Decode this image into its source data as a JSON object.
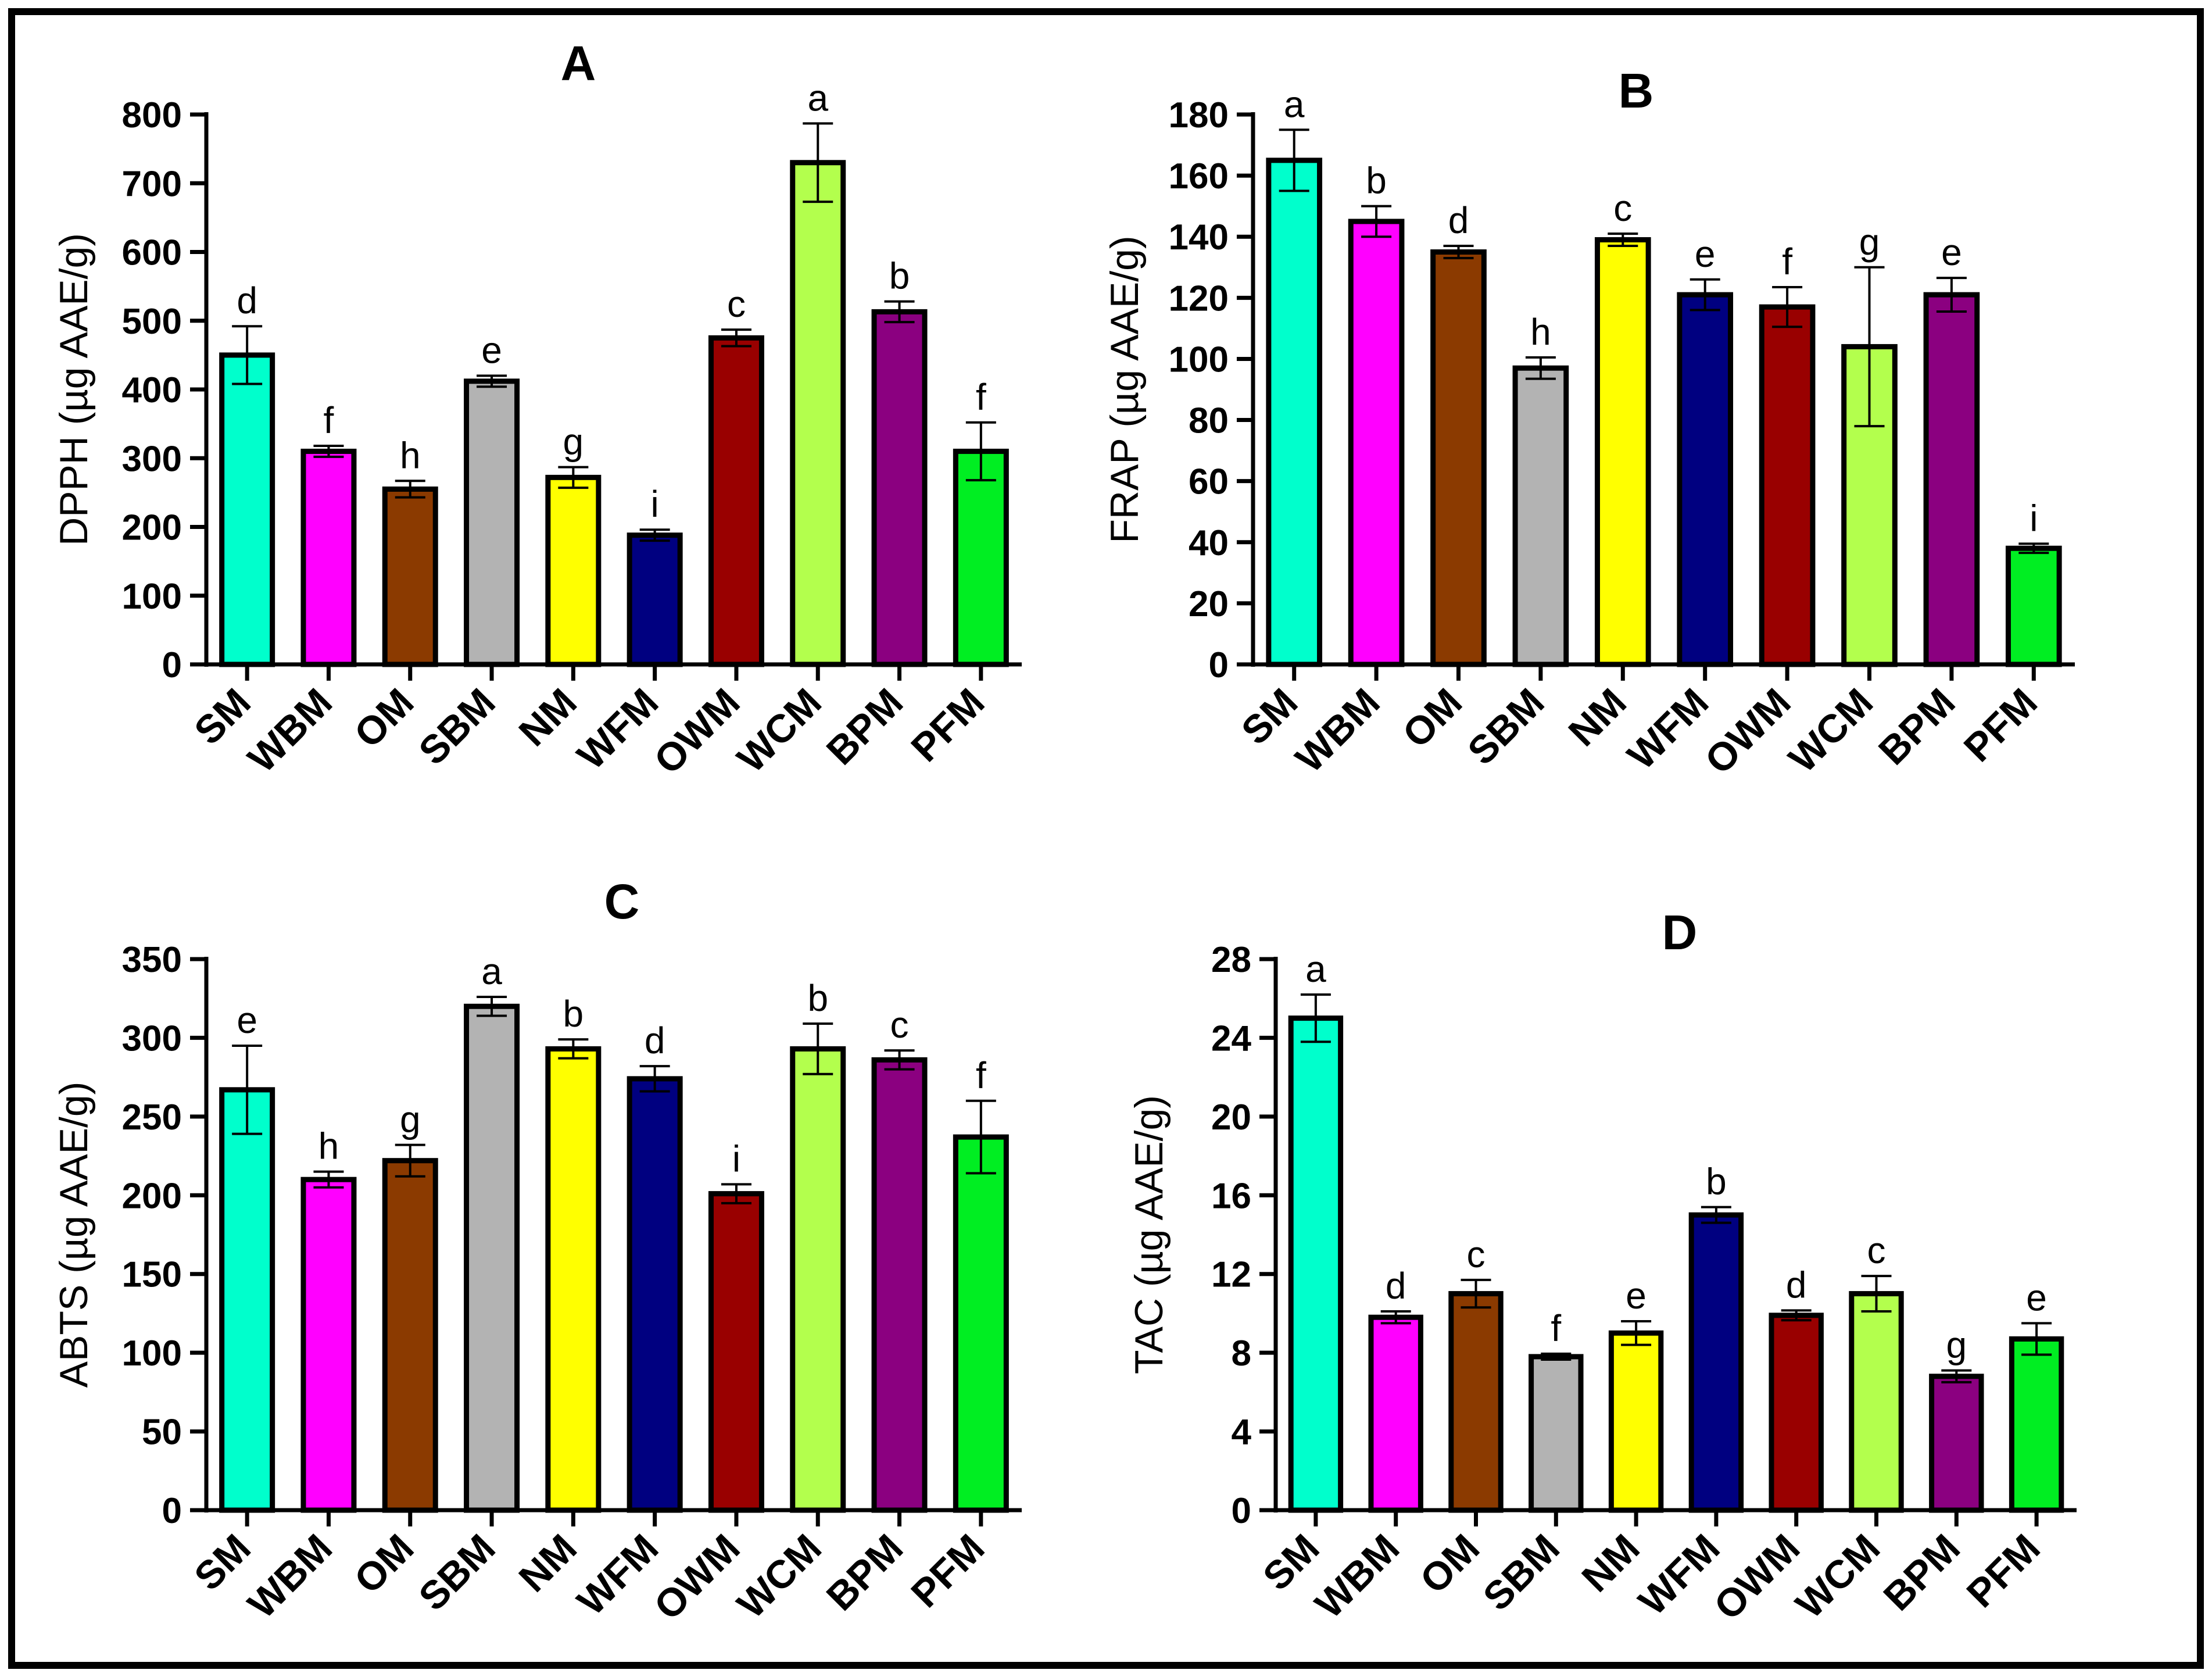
{
  "chart_data": [
    {
      "panel": "A",
      "type": "bar",
      "title": "A",
      "xlabel": "",
      "ylabel": "DPPH (µg AAE/g)",
      "ylim": [
        0,
        800
      ],
      "yticks": [
        0,
        100,
        200,
        300,
        400,
        500,
        600,
        700,
        800
      ],
      "yticks_labels": [
        "0",
        "100",
        "200",
        "300",
        "400",
        "500",
        "600",
        "700",
        "800"
      ],
      "categories": [
        "SM",
        "WBM",
        "OM",
        "SBM",
        "NM",
        "WFM",
        "OWM",
        "WCM",
        "BPM",
        "PFM"
      ],
      "values": [
        450,
        310,
        255,
        412,
        272,
        188,
        475,
        730,
        513,
        310
      ],
      "errors": [
        42,
        8,
        12,
        8,
        15,
        8,
        12,
        57,
        15,
        42
      ],
      "significance": [
        "d",
        "f",
        "h",
        "e",
        "g",
        "i",
        "c",
        "a",
        "b",
        "f"
      ]
    },
    {
      "panel": "B",
      "type": "bar",
      "title": "B",
      "xlabel": "",
      "ylabel": "FRAP (µg AAE/g)",
      "ylim": [
        0,
        180
      ],
      "yticks": [
        0,
        20,
        40,
        60,
        80,
        100,
        120,
        140,
        160,
        180
      ],
      "yticks_labels": [
        "0",
        "20",
        "40",
        "60",
        "80",
        "100",
        "120",
        "140",
        "160",
        "180"
      ],
      "categories": [
        "SM",
        "WBM",
        "OM",
        "SBM",
        "NM",
        "WFM",
        "OWM",
        "WCM",
        "BPM",
        "PFM"
      ],
      "values": [
        165,
        145,
        135,
        97,
        139,
        121,
        117,
        104,
        121,
        38
      ],
      "errors": [
        10,
        5,
        2,
        3.5,
        2,
        5,
        6.5,
        26,
        5.5,
        1.5
      ],
      "significance": [
        "a",
        "b",
        "d",
        "h",
        "c",
        "e",
        "f",
        "g",
        "e",
        "i"
      ]
    },
    {
      "panel": "C",
      "type": "bar",
      "title": "C",
      "xlabel": "",
      "ylabel": "ABTS (µg AAE/g)",
      "ylim": [
        0,
        350
      ],
      "yticks": [
        0,
        50,
        100,
        150,
        200,
        250,
        300,
        350
      ],
      "yticks_labels": [
        "0",
        "50",
        "100",
        "150",
        "200",
        "250",
        "300",
        "350"
      ],
      "categories": [
        "SM",
        "WBM",
        "OM",
        "SBM",
        "NM",
        "WFM",
        "OWM",
        "WCM",
        "BPM",
        "PFM"
      ],
      "values": [
        267,
        210,
        222,
        320,
        293,
        274,
        201,
        293,
        286,
        237
      ],
      "errors": [
        28,
        5,
        10,
        6,
        6,
        8,
        6,
        16,
        6,
        23
      ],
      "significance": [
        "e",
        "h",
        "g",
        "a",
        "b",
        "d",
        "i",
        "b",
        "c",
        "f"
      ]
    },
    {
      "panel": "D",
      "type": "bar",
      "title": "D",
      "xlabel": "",
      "ylabel": "TAC (µg AAE/g)",
      "ylim": [
        0,
        28
      ],
      "yticks": [
        0,
        4,
        8,
        12,
        16,
        20,
        24,
        28
      ],
      "yticks_labels": [
        "0",
        "4",
        "8",
        "12",
        "16",
        "20",
        "24",
        "28"
      ],
      "categories": [
        "SM",
        "WBM",
        "OM",
        "SBM",
        "NM",
        "WFM",
        "OWM",
        "WCM",
        "BPM",
        "PFM"
      ],
      "values": [
        25,
        9.8,
        11,
        7.8,
        9,
        15,
        9.9,
        11,
        6.8,
        8.7
      ],
      "errors": [
        1.2,
        0.3,
        0.7,
        0.15,
        0.6,
        0.4,
        0.25,
        0.9,
        0.3,
        0.8
      ],
      "significance": [
        "a",
        "d",
        "c",
        "f",
        "e",
        "b",
        "d",
        "c",
        "g",
        "e"
      ]
    }
  ],
  "colors": [
    "#00ffcc",
    "#ff00ff",
    "#8b3a00",
    "#b3b3b3",
    "#ffff00",
    "#000080",
    "#990000",
    "#b3ff4d",
    "#8b0080",
    "#00ee22"
  ]
}
